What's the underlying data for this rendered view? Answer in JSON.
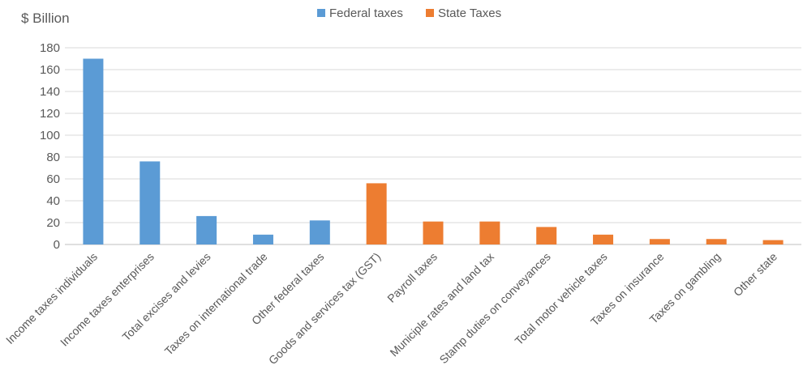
{
  "chart_data": {
    "type": "bar",
    "ylabel": "$ Billion",
    "ylim": [
      0,
      180
    ],
    "yticks": [
      0,
      20,
      40,
      60,
      80,
      100,
      120,
      140,
      160,
      180
    ],
    "grid": true,
    "legend_position": "top-center",
    "series": [
      {
        "name": "Federal taxes",
        "color": "#5b9bd5"
      },
      {
        "name": "State Taxes",
        "color": "#ed7d31"
      }
    ],
    "categories": [
      "Income taxes individuals",
      "Income taxes enterprises",
      "Total excises and levies",
      "Taxes on international trade",
      "Other federal taxes",
      "Goods and services tax (GST)",
      "Payroll taxes",
      "Municiple rates and land tax",
      "Stamp duties on conveyances",
      "Total motor vehicle taxes",
      "Taxes on insurance",
      "Taxes on gambling",
      "Other state"
    ],
    "values": [
      170,
      76,
      26,
      9,
      22,
      56,
      21,
      21,
      16,
      9,
      5,
      5,
      4
    ],
    "series_index": [
      0,
      0,
      0,
      0,
      0,
      1,
      1,
      1,
      1,
      1,
      1,
      1,
      1
    ]
  }
}
